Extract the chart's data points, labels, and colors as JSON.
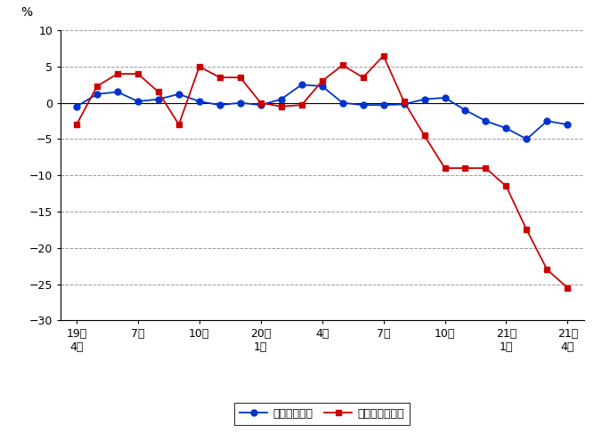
{
  "ylabel": "%",
  "ylim": [
    -30,
    10
  ],
  "yticks": [
    -30,
    -25,
    -20,
    -15,
    -10,
    -5,
    0,
    5,
    10
  ],
  "tick_positions": [
    0,
    3,
    6,
    9,
    12,
    15,
    18,
    21,
    24
  ],
  "tick_labels_line1": [
    "19年",
    "",
    "10月",
    "20年",
    "4月",
    "7月",
    "10月",
    "21年",
    "21年"
  ],
  "tick_labels_line2": [
    "4月",
    "7月",
    "",
    "1月",
    "",
    "",
    "",
    "1月",
    "4月"
  ],
  "blue_values": [
    -0.5,
    1.2,
    1.5,
    0.2,
    0.5,
    1.2,
    0.2,
    -0.3,
    0.0,
    -0.3,
    0.5,
    2.5,
    2.3,
    0.0,
    -0.3,
    -0.3,
    -0.2,
    0.5,
    0.7,
    -1.0,
    -2.5,
    -3.5,
    -5.0,
    -2.5,
    -3.0
  ],
  "red_values": [
    -3.0,
    2.3,
    4.0,
    4.0,
    1.5,
    -3.0,
    5.0,
    3.5,
    3.5,
    0.0,
    -0.5,
    -0.3,
    3.0,
    5.2,
    3.5,
    6.5,
    0.2,
    -4.5,
    -9.0,
    -9.0,
    -9.0,
    -11.5,
    -17.5,
    -23.0,
    -25.5
  ],
  "blue_color": "#0033CC",
  "red_color": "#CC0000",
  "background_color": "#ffffff",
  "grid_color": "#999999",
  "legend_blue": "総実労働時間",
  "legend_red": "所定外労働時間",
  "n_points": 25
}
